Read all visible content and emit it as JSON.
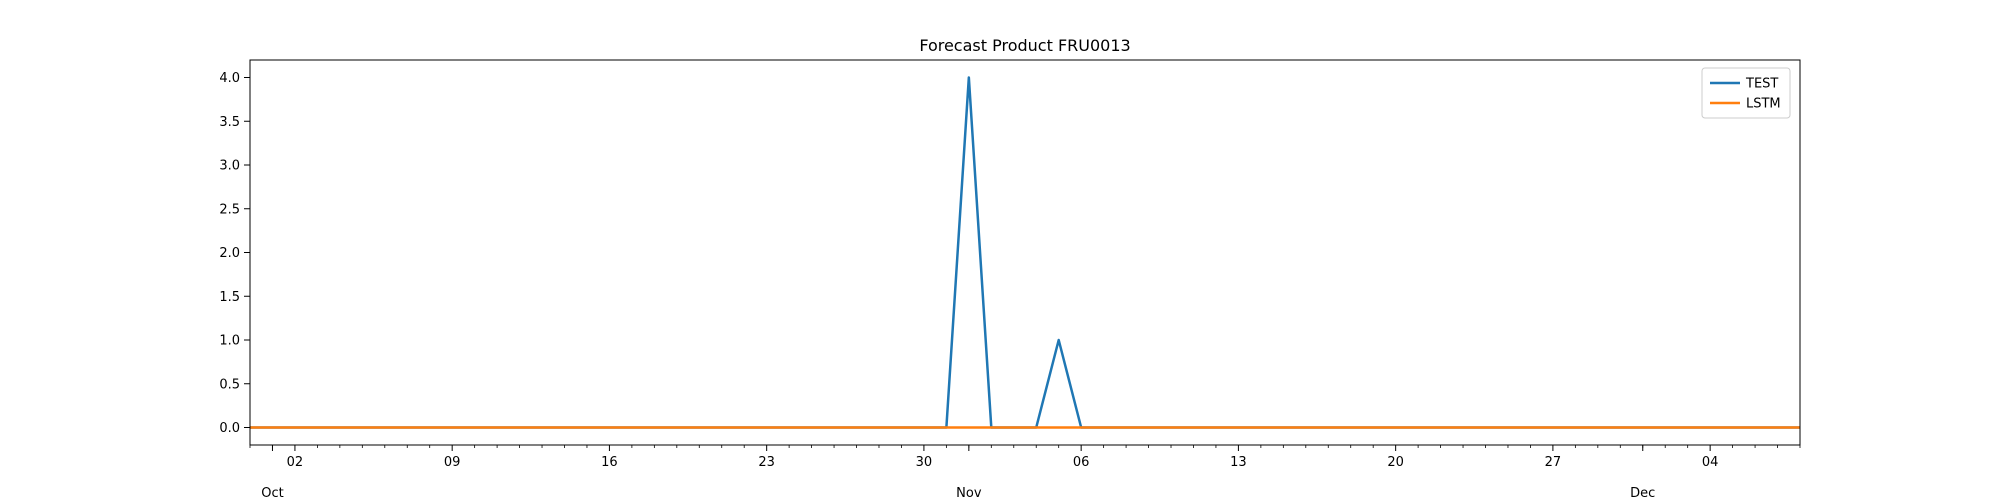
{
  "chart_data": {
    "type": "line",
    "title": "Forecast Product FRU0013",
    "xlabel": "",
    "ylabel": "",
    "x_type": "date",
    "xlim": [
      "2023-09-30",
      "2023-12-08"
    ],
    "ylim": [
      -0.2,
      4.2
    ],
    "y_ticks": [
      0.0,
      0.5,
      1.0,
      1.5,
      2.0,
      2.5,
      3.0,
      3.5,
      4.0
    ],
    "y_tick_labels": [
      "0.0",
      "0.5",
      "1.0",
      "1.5",
      "2.0",
      "2.5",
      "3.0",
      "3.5",
      "4.0"
    ],
    "x_major_ticks": [
      {
        "date": "2023-10-02",
        "label": "02"
      },
      {
        "date": "2023-10-09",
        "label": "09"
      },
      {
        "date": "2023-10-16",
        "label": "16"
      },
      {
        "date": "2023-10-23",
        "label": "23"
      },
      {
        "date": "2023-10-30",
        "label": "30"
      },
      {
        "date": "2023-11-06",
        "label": "06"
      },
      {
        "date": "2023-11-13",
        "label": "13"
      },
      {
        "date": "2023-11-20",
        "label": "20"
      },
      {
        "date": "2023-11-27",
        "label": "27"
      },
      {
        "date": "2023-12-04",
        "label": "04"
      }
    ],
    "x_month_labels": [
      {
        "date": "2023-10-01",
        "label": "Oct"
      },
      {
        "date": "2023-11-01",
        "label": "Nov"
      },
      {
        "date": "2023-12-01",
        "label": "Dec"
      }
    ],
    "grid": false,
    "legend": "top-right",
    "series": [
      {
        "name": "TEST",
        "color": "#1f77b4",
        "points": [
          {
            "x": "2023-09-30",
            "y": 0
          },
          {
            "x": "2023-10-31",
            "y": 0
          },
          {
            "x": "2023-11-01",
            "y": 4
          },
          {
            "x": "2023-11-02",
            "y": 0
          },
          {
            "x": "2023-11-04",
            "y": 0
          },
          {
            "x": "2023-11-05",
            "y": 1
          },
          {
            "x": "2023-11-06",
            "y": 0
          },
          {
            "x": "2023-12-08",
            "y": 0
          }
        ]
      },
      {
        "name": "LSTM",
        "color": "#ff7f0e",
        "points": [
          {
            "x": "2023-09-30",
            "y": 0
          },
          {
            "x": "2023-12-08",
            "y": 0
          }
        ]
      }
    ]
  }
}
